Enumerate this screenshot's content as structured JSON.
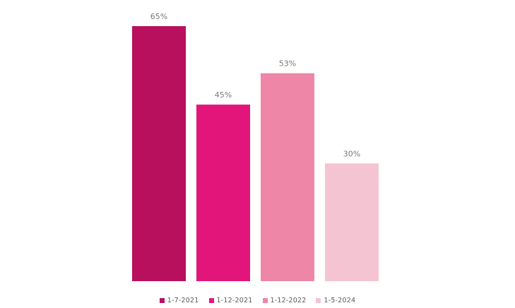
{
  "chart_data": {
    "type": "bar",
    "categories": [
      "1-7-2021",
      "1-12-2021",
      "1-12-2022",
      "1-5-2024"
    ],
    "values": [
      65,
      45,
      53,
      30
    ],
    "value_labels": [
      "65%",
      "45%",
      "53%",
      "30%"
    ],
    "colors": [
      "#b9105e",
      "#e2167a",
      "#ee87a7",
      "#f4c4d2"
    ],
    "title": "",
    "xlabel": "",
    "ylabel": "",
    "ylim": [
      0,
      65
    ],
    "grid": false,
    "legend_position": "bottom"
  }
}
